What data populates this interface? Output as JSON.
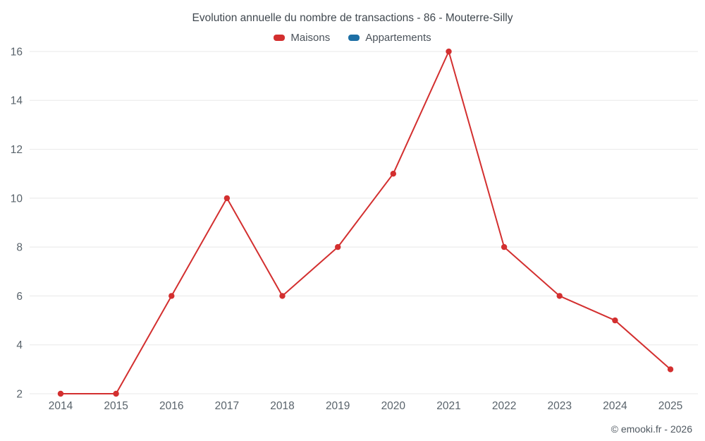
{
  "chart_data": {
    "type": "line",
    "title": "Evolution annuelle du nombre de transactions - 86 - Mouterre-Silly",
    "categories": [
      "2014",
      "2015",
      "2016",
      "2017",
      "2018",
      "2019",
      "2020",
      "2021",
      "2022",
      "2023",
      "2024",
      "2025"
    ],
    "series": [
      {
        "name": "Maisons",
        "color": "#d32f2f",
        "values": [
          2,
          2,
          6,
          10,
          6,
          8,
          11,
          16,
          8,
          6,
          5,
          3
        ]
      },
      {
        "name": "Appartements",
        "color": "#1d6fa5",
        "values": []
      }
    ],
    "ylim": [
      2,
      16
    ],
    "ytick_step": 2,
    "grid": true,
    "legend_position": "top",
    "marker": "circle",
    "grid_color": "#e8e8e8",
    "axis_label_color": "#59636b"
  },
  "footer": {
    "credit": "© emooki.fr - 2026"
  }
}
